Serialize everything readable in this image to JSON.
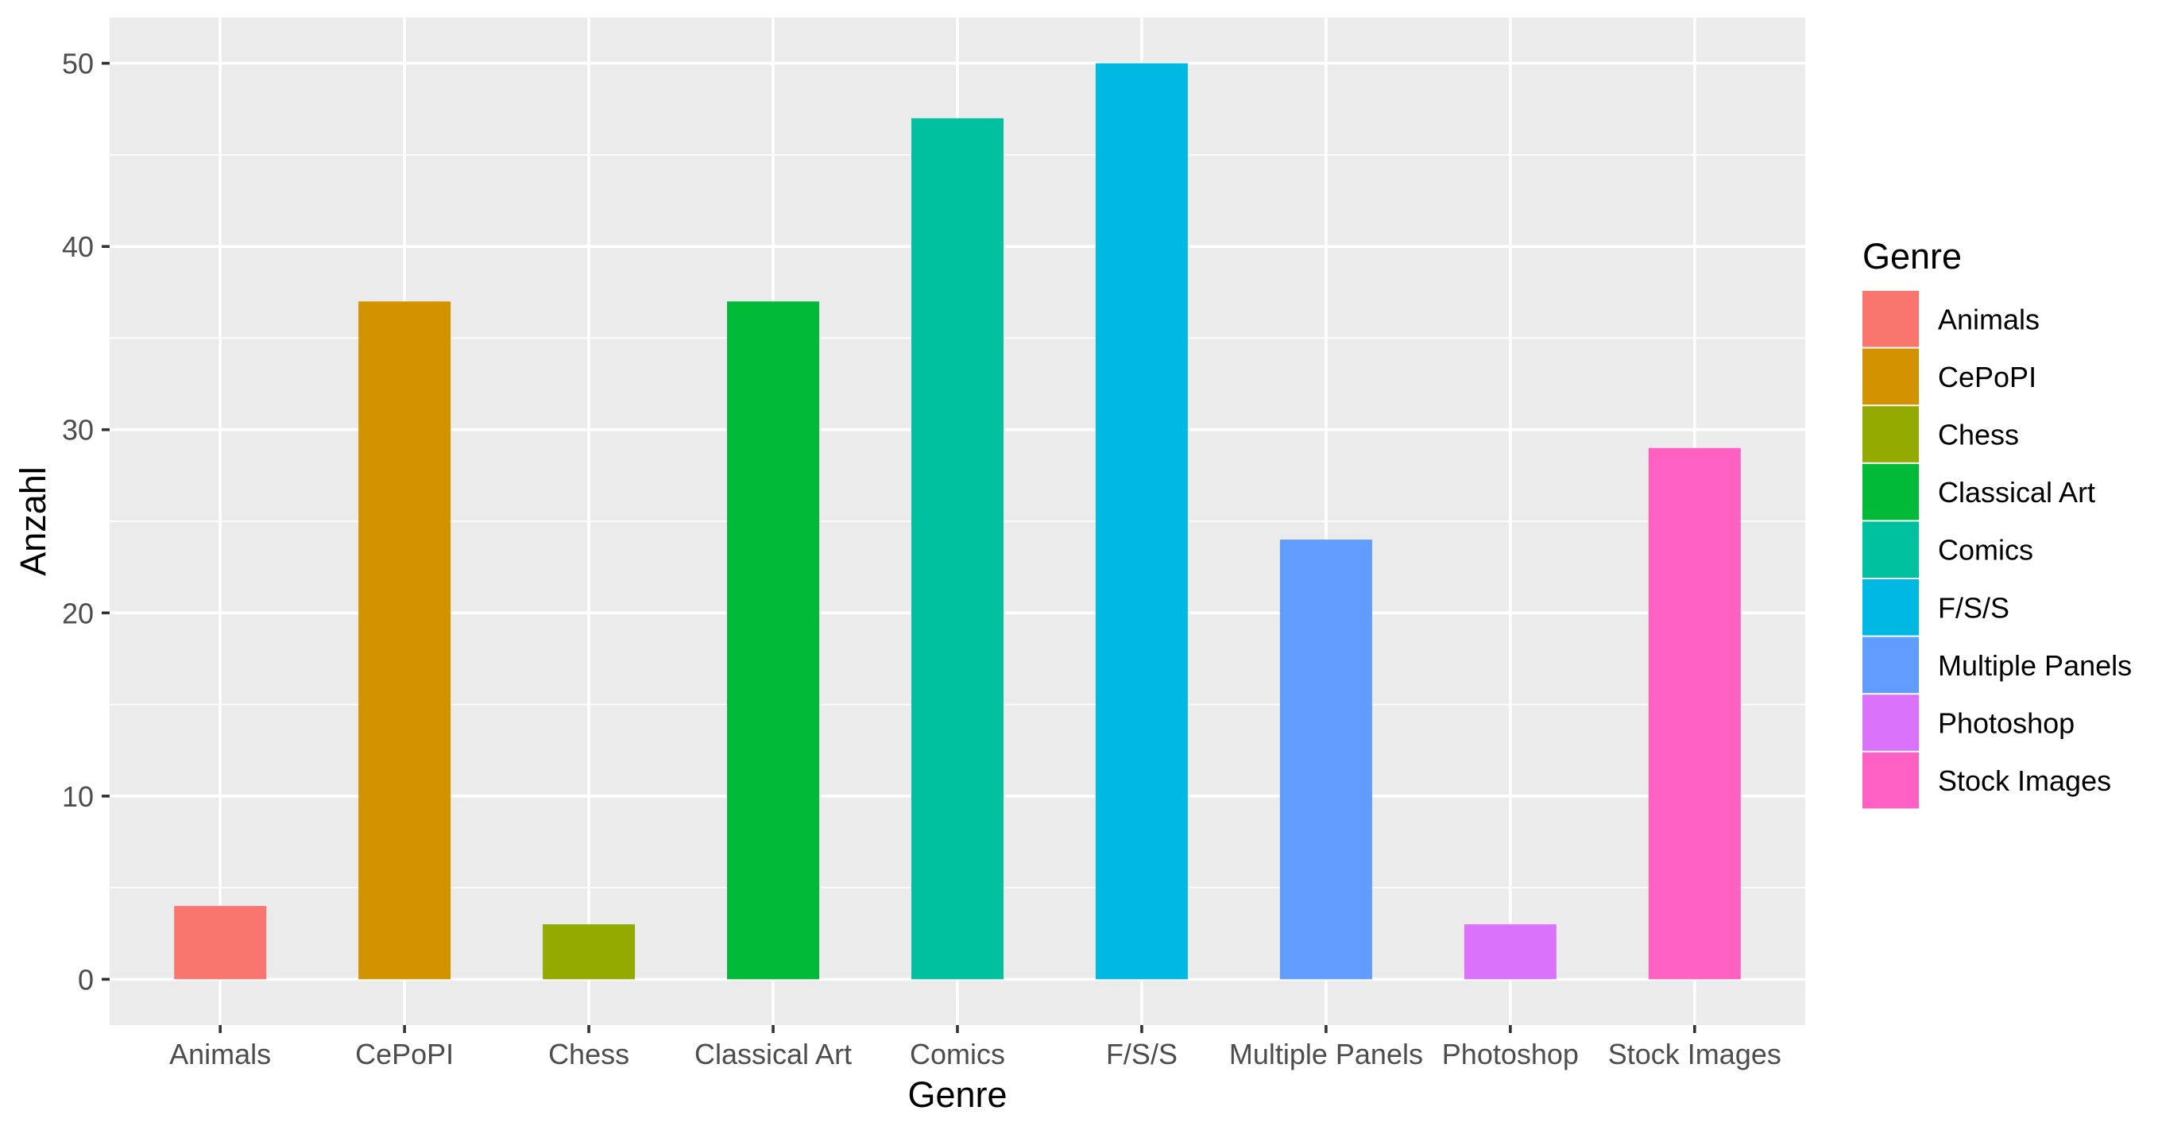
{
  "chart_data": {
    "type": "bar",
    "title": "",
    "xlabel": "Genre",
    "ylabel": "Anzahl",
    "categories": [
      "Animals",
      "CePoPI",
      "Chess",
      "Classical Art",
      "Comics",
      "F/S/S",
      "Multiple Panels",
      "Photoshop",
      "Stock Images"
    ],
    "values": [
      4,
      37,
      3,
      37,
      47,
      50,
      24,
      3,
      29
    ],
    "colors": [
      "#F8766D",
      "#D39200",
      "#93AA00",
      "#00BA38",
      "#00C19F",
      "#00B9E3",
      "#619CFF",
      "#DB72FB",
      "#FF61C3"
    ],
    "ylim": [
      -2.5,
      52.5
    ],
    "yticks": [
      0,
      10,
      20,
      30,
      40,
      50
    ],
    "grid": true,
    "legend": {
      "title": "Genre",
      "position": "right",
      "entries": [
        "Animals",
        "CePoPI",
        "Chess",
        "Classical Art",
        "Comics",
        "F/S/S",
        "Multiple Panels",
        "Photoshop",
        "Stock Images"
      ]
    }
  }
}
